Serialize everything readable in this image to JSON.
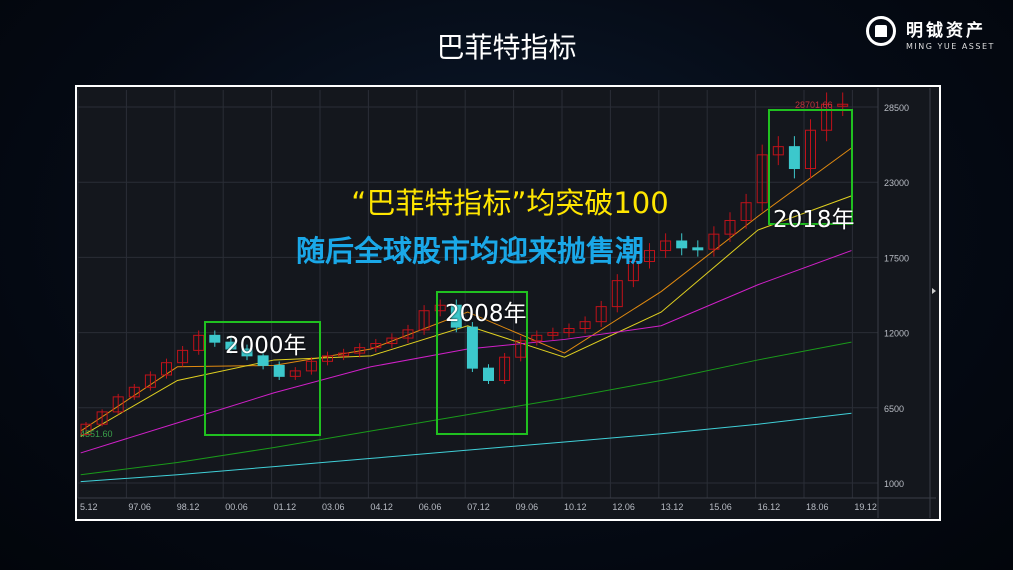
{
  "slide": {
    "title": "巴菲特指标",
    "logo_cn": "明钺资产",
    "logo_en": "MING YUE ASSET"
  },
  "overlay": {
    "line1": "“巴菲特指标”均突破100",
    "line2": "随后全球股市均迎来抛售潮",
    "labels": [
      "2000年",
      "2008年",
      "2018年"
    ]
  },
  "chart_data": {
    "type": "candlestick",
    "x_tick_labels": [
      "5.12",
      "97.06",
      "98.12",
      "00.06",
      "01.12",
      "03.06",
      "04.12",
      "06.06",
      "07.12",
      "09.06",
      "10.12",
      "12.06",
      "13.12",
      "15.06",
      "16.12",
      "18.06",
      "19.12"
    ],
    "y_ticks": [
      1000,
      6500,
      12000,
      17500,
      23000,
      28500
    ],
    "ylim": [
      1000,
      29000
    ],
    "period": "half-year",
    "first_open": 4551.6,
    "closes": [
      5300,
      6200,
      7300,
      8000,
      8900,
      9800,
      10700,
      11800,
      11300,
      10800,
      10300,
      9600,
      8800,
      9200,
      9900,
      10300,
      10500,
      10900,
      11200,
      11600,
      12200,
      13600,
      14000,
      12400,
      9400,
      8500,
      10200,
      11400,
      11800,
      12000,
      12300,
      12800,
      13900,
      15800,
      17200,
      18000,
      18700,
      18200,
      18100,
      19200,
      20200,
      21500,
      25000,
      25600,
      24000,
      26800,
      28701.66,
      28701.66
    ],
    "min_label": "4551.60",
    "max_label": "28701.66",
    "up_color": "#c0121a",
    "down_color": "#3cc8cc",
    "ma_dates": [
      1996,
      1999,
      2002,
      2005,
      2008,
      2011,
      2014,
      2017,
      2019.9
    ],
    "moving_averages": [
      {
        "color": "#e08a10",
        "values": [
          4800,
          9500,
          9600,
          10800,
          13500,
          10500,
          15000,
          20500,
          25500
        ]
      },
      {
        "color": "#e0d020",
        "values": [
          4400,
          8500,
          10000,
          10300,
          12500,
          10200,
          13500,
          19500,
          22000
        ]
      },
      {
        "color": "#d020c8",
        "values": [
          3200,
          5400,
          7600,
          9500,
          10800,
          11500,
          12500,
          15500,
          18000
        ]
      },
      {
        "color": "#1a9a1a",
        "values": [
          1600,
          2500,
          3600,
          4800,
          6000,
          7200,
          8500,
          10000,
          11300
        ]
      },
      {
        "color": "#40d0d8",
        "values": [
          1100,
          1600,
          2200,
          2800,
          3400,
          4000,
          4600,
          5300,
          6100
        ]
      }
    ],
    "highlights": [
      {
        "label": "2000年"
      },
      {
        "label": "2008年"
      },
      {
        "label": "2018年"
      }
    ]
  }
}
